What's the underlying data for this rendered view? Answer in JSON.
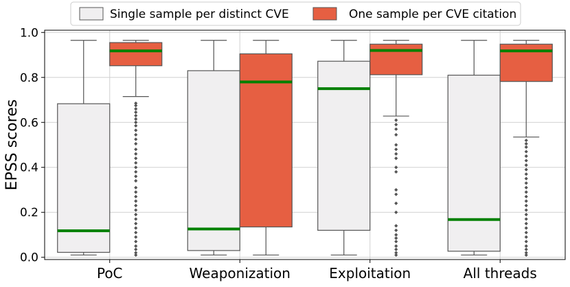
{
  "chart_data": {
    "type": "box",
    "title": "",
    "xlabel": "",
    "ylabel": "EPSS scores",
    "ylim": [
      -0.01,
      1.01
    ],
    "yticks": [
      0.0,
      0.2,
      0.4,
      0.6,
      0.8,
      1.0
    ],
    "ytick_labels": [
      "0.0",
      "0.2",
      "0.4",
      "0.6",
      "0.8",
      "1.0"
    ],
    "grid": true,
    "legend_position": "top-center",
    "categories": [
      "PoC",
      "Weaponization",
      "Exploitation",
      "All threads"
    ],
    "series": [
      {
        "name": "Single sample per distinct CVE",
        "color": "#f0eff0",
        "boxes": [
          {
            "whisker_low": 0.01,
            "q1": 0.022,
            "median": 0.118,
            "q3": 0.683,
            "whisker_high": 0.965,
            "outliers": []
          },
          {
            "whisker_low": 0.01,
            "q1": 0.03,
            "median": 0.126,
            "q3": 0.83,
            "whisker_high": 0.965,
            "outliers": []
          },
          {
            "whisker_low": 0.01,
            "q1": 0.12,
            "median": 0.75,
            "q3": 0.872,
            "whisker_high": 0.965,
            "outliers": []
          },
          {
            "whisker_low": 0.01,
            "q1": 0.027,
            "median": 0.168,
            "q3": 0.81,
            "whisker_high": 0.965,
            "outliers": []
          }
        ]
      },
      {
        "name": "One sample per CVE citation",
        "color": "#e65f42",
        "boxes": [
          {
            "whisker_low": 0.715,
            "q1": 0.852,
            "median": 0.918,
            "q3": 0.955,
            "whisker_high": 0.965,
            "outliers": [
              0.685,
              0.675,
              0.66,
              0.645,
              0.63,
              0.615,
              0.6,
              0.585,
              0.565,
              0.545,
              0.525,
              0.505,
              0.48,
              0.46,
              0.44,
              0.42,
              0.4,
              0.38,
              0.36,
              0.34,
              0.31,
              0.29,
              0.27,
              0.25,
              0.23,
              0.21,
              0.19,
              0.17,
              0.15,
              0.13,
              0.11,
              0.09,
              0.07,
              0.05,
              0.035,
              0.02,
              0.01
            ]
          },
          {
            "whisker_low": 0.01,
            "q1": 0.135,
            "median": 0.78,
            "q3": 0.905,
            "whisker_high": 0.965,
            "outliers": []
          },
          {
            "whisker_low": 0.628,
            "q1": 0.812,
            "median": 0.92,
            "q3": 0.948,
            "whisker_high": 0.965,
            "outliers": [
              0.61,
              0.59,
              0.57,
              0.545,
              0.5,
              0.48,
              0.46,
              0.44,
              0.4,
              0.38,
              0.3,
              0.28,
              0.24,
              0.2,
              0.14,
              0.12,
              0.1,
              0.085,
              0.07,
              0.05,
              0.035,
              0.02,
              0.01
            ]
          },
          {
            "whisker_low": 0.535,
            "q1": 0.782,
            "median": 0.918,
            "q3": 0.948,
            "whisker_high": 0.965,
            "outliers": [
              0.52,
              0.505,
              0.49,
              0.47,
              0.45,
              0.43,
              0.41,
              0.39,
              0.37,
              0.35,
              0.33,
              0.31,
              0.29,
              0.27,
              0.25,
              0.23,
              0.21,
              0.19,
              0.17,
              0.15,
              0.13,
              0.11,
              0.09,
              0.07,
              0.05,
              0.035,
              0.02,
              0.01
            ]
          }
        ]
      }
    ],
    "median_color": "#008000"
  }
}
